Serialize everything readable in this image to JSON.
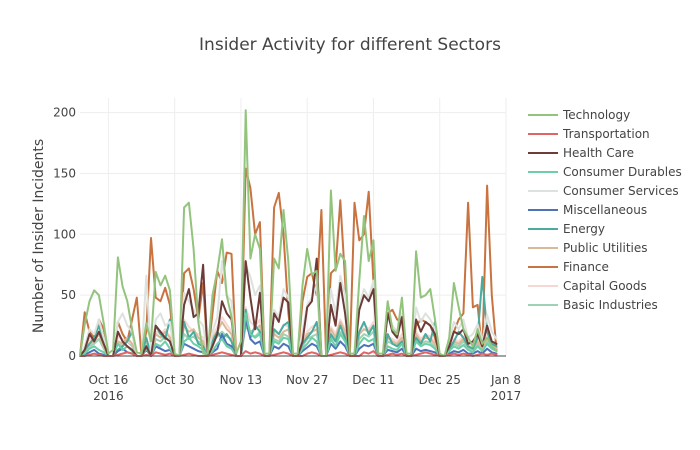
{
  "chart_data": {
    "type": "line",
    "title": "Insider Activity for different Sectors",
    "xlabel": "",
    "ylabel": "Number of Insider Incidents",
    "xlim": [
      "2016-10-10",
      "2017-01-08"
    ],
    "ylim": [
      0,
      212
    ],
    "y_ticks": [
      0,
      50,
      100,
      150,
      200
    ],
    "x_ticks": [
      {
        "date": "2016-10-16",
        "label": "Oct 16",
        "sublabel": "2016"
      },
      {
        "date": "2016-10-30",
        "label": "Oct 30",
        "sublabel": ""
      },
      {
        "date": "2016-11-13",
        "label": "Nov 13",
        "sublabel": ""
      },
      {
        "date": "2016-11-27",
        "label": "Nov 27",
        "sublabel": ""
      },
      {
        "date": "2016-12-11",
        "label": "Dec 11",
        "sublabel": ""
      },
      {
        "date": "2016-12-25",
        "label": "Dec 25",
        "sublabel": ""
      },
      {
        "date": "2017-01-08",
        "label": "Jan 8",
        "sublabel": "2017"
      }
    ],
    "grid": true,
    "legend_position": "right",
    "x": [
      "2016-10-10",
      "2016-10-11",
      "2016-10-12",
      "2016-10-13",
      "2016-10-14",
      "2016-10-15",
      "2016-10-16",
      "2016-10-17",
      "2016-10-18",
      "2016-10-19",
      "2016-10-20",
      "2016-10-21",
      "2016-10-22",
      "2016-10-23",
      "2016-10-24",
      "2016-10-25",
      "2016-10-26",
      "2016-10-27",
      "2016-10-28",
      "2016-10-29",
      "2016-10-30",
      "2016-10-31",
      "2016-11-01",
      "2016-11-02",
      "2016-11-03",
      "2016-11-04",
      "2016-11-05",
      "2016-11-06",
      "2016-11-07",
      "2016-11-08",
      "2016-11-09",
      "2016-11-10",
      "2016-11-11",
      "2016-11-12",
      "2016-11-13",
      "2016-11-14",
      "2016-11-15",
      "2016-11-16",
      "2016-11-17",
      "2016-11-18",
      "2016-11-19",
      "2016-11-20",
      "2016-11-21",
      "2016-11-22",
      "2016-11-23",
      "2016-11-24",
      "2016-11-25",
      "2016-11-26",
      "2016-11-27",
      "2016-11-28",
      "2016-11-29",
      "2016-11-30",
      "2016-12-01",
      "2016-12-02",
      "2016-12-03",
      "2016-12-04",
      "2016-12-05",
      "2016-12-06",
      "2016-12-07",
      "2016-12-08",
      "2016-12-09",
      "2016-12-10",
      "2016-12-11",
      "2016-12-12",
      "2016-12-13",
      "2016-12-14",
      "2016-12-15",
      "2016-12-16",
      "2016-12-17",
      "2016-12-18",
      "2016-12-19",
      "2016-12-20",
      "2016-12-21",
      "2016-12-22",
      "2016-12-23",
      "2016-12-24",
      "2016-12-25",
      "2016-12-26",
      "2016-12-27",
      "2016-12-28",
      "2016-12-29",
      "2016-12-30",
      "2016-12-31",
      "2017-01-01",
      "2017-01-02",
      "2017-01-03",
      "2017-01-04",
      "2017-01-05",
      "2017-01-06"
    ],
    "series": [
      {
        "name": "Technology",
        "color": "#93c47d",
        "values": [
          0,
          26,
          45,
          54,
          50,
          27,
          2,
          5,
          81,
          57,
          45,
          22,
          3,
          2,
          27,
          12,
          69,
          58,
          66,
          54,
          2,
          0,
          122,
          126,
          88,
          28,
          2,
          2,
          50,
          70,
          96,
          50,
          32,
          2,
          12,
          202,
          80,
          100,
          88,
          2,
          2,
          80,
          72,
          120,
          78,
          2,
          2,
          58,
          88,
          67,
          70,
          0,
          0,
          136,
          70,
          84,
          78,
          2,
          2,
          62,
          115,
          78,
          95,
          2,
          2,
          45,
          22,
          18,
          48,
          2,
          2,
          86,
          48,
          50,
          55,
          30,
          2,
          0,
          15,
          60,
          40,
          22,
          15,
          8,
          22,
          10,
          15,
          8,
          4
        ]
      },
      {
        "name": "Transportation",
        "color": "#e06666",
        "values": [
          0,
          0,
          1,
          2,
          1,
          0,
          0,
          0,
          1,
          2,
          3,
          2,
          0,
          0,
          1,
          0,
          3,
          2,
          1,
          2,
          0,
          0,
          1,
          2,
          1,
          0,
          0,
          0,
          1,
          2,
          3,
          2,
          1,
          0,
          0,
          4,
          2,
          3,
          2,
          0,
          0,
          1,
          2,
          3,
          2,
          0,
          0,
          0,
          2,
          3,
          2,
          0,
          0,
          1,
          2,
          3,
          2,
          0,
          0,
          0,
          3,
          2,
          4,
          0,
          0,
          1,
          2,
          1,
          2,
          0,
          0,
          1,
          2,
          3,
          2,
          1,
          0,
          0,
          1,
          2,
          1,
          2,
          1,
          0,
          1,
          2,
          1,
          2,
          1
        ]
      },
      {
        "name": "Health Care",
        "color": "#6d3c38",
        "values": [
          0,
          5,
          18,
          12,
          20,
          10,
          0,
          0,
          20,
          12,
          8,
          5,
          0,
          0,
          8,
          0,
          25,
          20,
          15,
          12,
          0,
          0,
          42,
          55,
          32,
          35,
          75,
          0,
          8,
          18,
          45,
          35,
          30,
          0,
          0,
          78,
          48,
          22,
          52,
          0,
          0,
          35,
          28,
          48,
          44,
          0,
          0,
          12,
          40,
          45,
          80,
          0,
          0,
          42,
          25,
          60,
          35,
          0,
          0,
          38,
          50,
          45,
          55,
          0,
          0,
          35,
          20,
          15,
          32,
          0,
          0,
          30,
          20,
          28,
          25,
          18,
          0,
          0,
          8,
          20,
          18,
          22,
          10,
          12,
          18,
          8,
          25,
          12,
          10
        ]
      },
      {
        "name": "Consumer Durables",
        "color": "#6ccfa8",
        "values": [
          0,
          2,
          6,
          8,
          5,
          3,
          0,
          0,
          10,
          5,
          8,
          4,
          0,
          0,
          6,
          0,
          10,
          8,
          12,
          6,
          0,
          0,
          12,
          15,
          10,
          8,
          5,
          0,
          4,
          10,
          14,
          8,
          6,
          0,
          0,
          35,
          18,
          15,
          18,
          0,
          0,
          12,
          10,
          15,
          14,
          0,
          0,
          6,
          10,
          15,
          12,
          0,
          0,
          14,
          8,
          18,
          12,
          0,
          0,
          10,
          15,
          12,
          14,
          0,
          0,
          8,
          6,
          5,
          10,
          0,
          0,
          12,
          8,
          10,
          9,
          6,
          0,
          0,
          4,
          8,
          6,
          9,
          5,
          3,
          8,
          4,
          10,
          6,
          4
        ]
      },
      {
        "name": "Consumer Services",
        "color": "#dde2df",
        "values": [
          0,
          8,
          22,
          18,
          30,
          15,
          0,
          0,
          28,
          35,
          25,
          20,
          0,
          0,
          66,
          0,
          30,
          35,
          25,
          28,
          0,
          0,
          52,
          45,
          38,
          30,
          25,
          0,
          20,
          32,
          78,
          50,
          45,
          0,
          0,
          75,
          65,
          50,
          58,
          0,
          0,
          38,
          32,
          55,
          48,
          0,
          0,
          20,
          42,
          48,
          58,
          0,
          0,
          55,
          35,
          66,
          50,
          0,
          0,
          42,
          55,
          48,
          62,
          0,
          0,
          35,
          25,
          20,
          35,
          0,
          0,
          40,
          28,
          35,
          30,
          22,
          0,
          0,
          12,
          28,
          22,
          30,
          15,
          18,
          26,
          12,
          34,
          20,
          14
        ]
      },
      {
        "name": "Miscellaneous",
        "color": "#4e72b8",
        "values": [
          0,
          1,
          3,
          5,
          2,
          1,
          0,
          0,
          4,
          6,
          3,
          2,
          0,
          0,
          5,
          0,
          8,
          6,
          4,
          5,
          0,
          0,
          10,
          8,
          6,
          4,
          3,
          0,
          3,
          6,
          18,
          10,
          8,
          0,
          0,
          30,
          14,
          10,
          12,
          0,
          0,
          8,
          6,
          10,
          8,
          0,
          0,
          4,
          7,
          10,
          8,
          0,
          0,
          10,
          6,
          12,
          8,
          0,
          0,
          6,
          9,
          8,
          10,
          0,
          0,
          5,
          4,
          3,
          6,
          0,
          0,
          6,
          4,
          5,
          4,
          3,
          0,
          0,
          2,
          4,
          3,
          5,
          2,
          2,
          4,
          2,
          6,
          3,
          2
        ]
      },
      {
        "name": "Energy",
        "color": "#4bab9d",
        "values": [
          0,
          5,
          10,
          15,
          25,
          12,
          0,
          0,
          5,
          8,
          12,
          20,
          0,
          0,
          15,
          0,
          25,
          18,
          14,
          30,
          0,
          0,
          28,
          15,
          20,
          10,
          8,
          0,
          12,
          20,
          14,
          18,
          12,
          0,
          0,
          38,
          15,
          25,
          20,
          0,
          0,
          22,
          18,
          25,
          28,
          0,
          0,
          10,
          15,
          20,
          28,
          0,
          0,
          18,
          12,
          25,
          15,
          0,
          0,
          20,
          28,
          18,
          25,
          0,
          0,
          18,
          10,
          8,
          12,
          0,
          0,
          15,
          10,
          18,
          12,
          28,
          0,
          0,
          6,
          12,
          20,
          15,
          8,
          6,
          15,
          65,
          20,
          10,
          8
        ]
      },
      {
        "name": "Public Utilities",
        "color": "#d9b998",
        "values": [
          0,
          4,
          10,
          12,
          18,
          8,
          0,
          0,
          12,
          10,
          15,
          10,
          0,
          0,
          15,
          0,
          18,
          15,
          20,
          15,
          0,
          0,
          25,
          20,
          22,
          15,
          12,
          0,
          15,
          20,
          28,
          22,
          18,
          0,
          0,
          30,
          20,
          22,
          25,
          0,
          0,
          18,
          15,
          20,
          22,
          0,
          0,
          10,
          18,
          20,
          22,
          0,
          0,
          22,
          15,
          28,
          20,
          0,
          0,
          18,
          22,
          20,
          25,
          0,
          0,
          15,
          12,
          10,
          15,
          0,
          0,
          18,
          12,
          15,
          14,
          10,
          0,
          0,
          6,
          12,
          10,
          14,
          8,
          6,
          12,
          6,
          15,
          10,
          6
        ]
      },
      {
        "name": "Finance",
        "color": "#c87340",
        "values": [
          0,
          36,
          20,
          15,
          30,
          22,
          0,
          0,
          28,
          18,
          12,
          30,
          48,
          0,
          20,
          97,
          48,
          45,
          56,
          42,
          0,
          0,
          68,
          72,
          55,
          30,
          60,
          0,
          35,
          70,
          60,
          85,
          84,
          0,
          0,
          154,
          138,
          100,
          110,
          0,
          0,
          122,
          134,
          100,
          36,
          0,
          0,
          45,
          65,
          68,
          50,
          120,
          0,
          68,
          72,
          128,
          62,
          0,
          126,
          95,
          100,
          135,
          60,
          0,
          0,
          35,
          38,
          30,
          28,
          0,
          0,
          25,
          30,
          28,
          25,
          15,
          0,
          0,
          12,
          20,
          30,
          35,
          126,
          40,
          42,
          2,
          140,
          50,
          5
        ]
      },
      {
        "name": "Capital Goods",
        "color": "#f7d7d2",
        "values": [
          0,
          6,
          14,
          12,
          20,
          10,
          0,
          0,
          16,
          14,
          12,
          10,
          0,
          0,
          14,
          0,
          20,
          18,
          22,
          16,
          0,
          0,
          30,
          24,
          20,
          18,
          15,
          0,
          16,
          24,
          32,
          26,
          20,
          0,
          0,
          40,
          28,
          24,
          30,
          0,
          0,
          20,
          18,
          26,
          24,
          0,
          0,
          12,
          20,
          24,
          26,
          0,
          0,
          24,
          18,
          30,
          22,
          0,
          0,
          20,
          26,
          22,
          28,
          0,
          0,
          16,
          14,
          12,
          18,
          0,
          0,
          20,
          14,
          18,
          16,
          12,
          0,
          0,
          8,
          14,
          12,
          16,
          10,
          8,
          14,
          8,
          18,
          12,
          8
        ]
      },
      {
        "name": "Basic Industries",
        "color": "#9fd1b4",
        "values": [
          0,
          3,
          8,
          10,
          14,
          6,
          0,
          0,
          10,
          8,
          12,
          8,
          0,
          0,
          10,
          0,
          14,
          12,
          16,
          12,
          0,
          0,
          18,
          14,
          16,
          12,
          10,
          0,
          12,
          16,
          20,
          16,
          14,
          0,
          0,
          25,
          18,
          16,
          20,
          0,
          0,
          14,
          12,
          18,
          16,
          0,
          0,
          8,
          14,
          16,
          18,
          0,
          0,
          16,
          12,
          20,
          14,
          0,
          0,
          14,
          18,
          16,
          20,
          0,
          0,
          12,
          10,
          8,
          12,
          0,
          0,
          14,
          10,
          12,
          11,
          8,
          0,
          0,
          5,
          10,
          8,
          12,
          6,
          5,
          10,
          5,
          12,
          8,
          5
        ]
      }
    ]
  }
}
